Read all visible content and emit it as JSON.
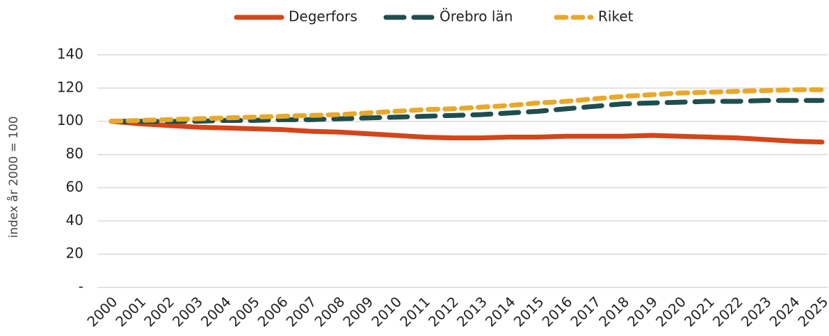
{
  "chart_data": {
    "type": "line",
    "categories": [
      "2000",
      "2001",
      "2002",
      "2003",
      "2004",
      "2005",
      "2006",
      "2007",
      "2008",
      "2009",
      "2010",
      "2011",
      "2012",
      "2013",
      "2014",
      "2015",
      "2016",
      "2017",
      "2018",
      "2019",
      "2020",
      "2021",
      "2022",
      "2023",
      "2024",
      "2025"
    ],
    "series": [
      {
        "name": "Degerfors",
        "color": "#d4451a",
        "style": "solid",
        "values": [
          100,
          98.5,
          97.5,
          96.5,
          96,
          95.5,
          95,
          94,
          93.5,
          92.5,
          91.5,
          90.5,
          90,
          90,
          90.5,
          90.5,
          91,
          91,
          91,
          91.5,
          91,
          90.5,
          90,
          89,
          88,
          87.5
        ]
      },
      {
        "name": "Örebro län",
        "color": "#1f4e4f",
        "style": "long-dash",
        "values": [
          100,
          100,
          100,
          100,
          100.5,
          100.5,
          101,
          101,
          101.5,
          102,
          102.5,
          103,
          103.5,
          104,
          105,
          106,
          107.5,
          109,
          110.5,
          111,
          111.5,
          112,
          112,
          112.5,
          112.5,
          112.5
        ]
      },
      {
        "name": "Riket",
        "color": "#e8a82a",
        "style": "dash",
        "values": [
          100,
          100.5,
          101,
          101.5,
          102,
          102.5,
          103,
          103.5,
          104,
          105,
          106,
          107,
          107.5,
          108.5,
          109.5,
          111,
          112,
          113.5,
          115,
          116,
          117,
          117.5,
          118,
          118.5,
          119,
          119
        ]
      }
    ],
    "y_label": "index år 2000 = 100",
    "ylim": [
      0,
      140
    ],
    "yticks": [
      {
        "value": 0,
        "label": "-"
      },
      20,
      40,
      60,
      80,
      100,
      120,
      140
    ],
    "grid": true,
    "legend": "top"
  }
}
